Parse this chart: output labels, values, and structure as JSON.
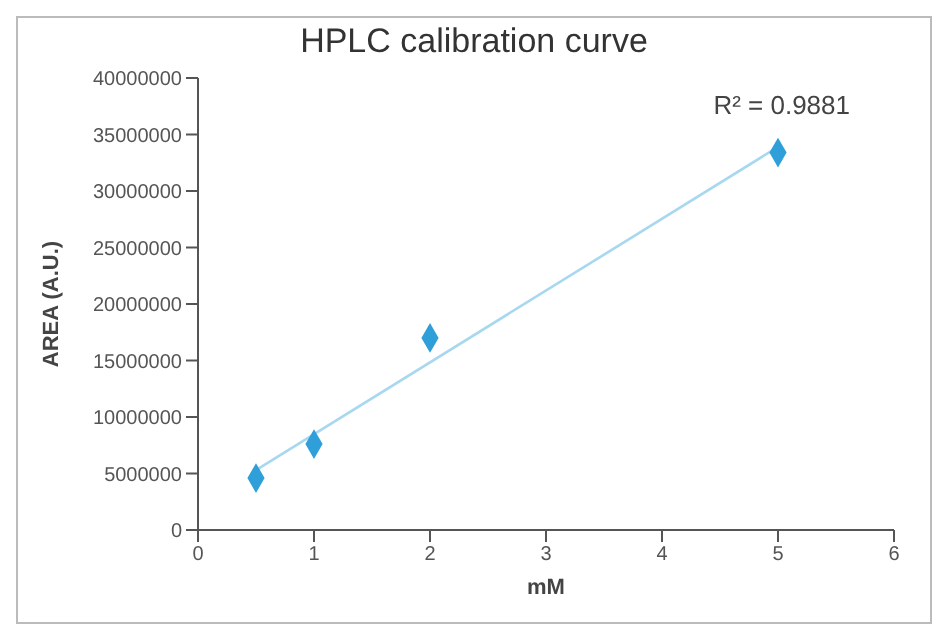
{
  "chart_data": {
    "type": "scatter",
    "title": "HPLC calibration curve",
    "xlabel": "mM",
    "ylabel": "AREA (A.U.)",
    "xlim": [
      0,
      6
    ],
    "xticks": [
      0,
      1,
      2,
      3,
      4,
      5,
      6
    ],
    "ylim": [
      0,
      40000000
    ],
    "yticks": [
      0,
      5000000,
      10000000,
      15000000,
      20000000,
      25000000,
      30000000,
      35000000,
      40000000
    ],
    "marker": "diamond",
    "series": [
      {
        "color": "#2e9fd8",
        "x": [
          0.5,
          1,
          2,
          5
        ],
        "values": [
          4600000,
          7600000,
          17000000,
          33400000
        ]
      },
      {
        "type": "line",
        "color": "#a8d8f0",
        "marker": "none",
        "x": [
          0.5,
          5
        ],
        "values": [
          5300000,
          33900000
        ]
      }
    ],
    "annotations": [
      "R² = 0.9881"
    ]
  }
}
